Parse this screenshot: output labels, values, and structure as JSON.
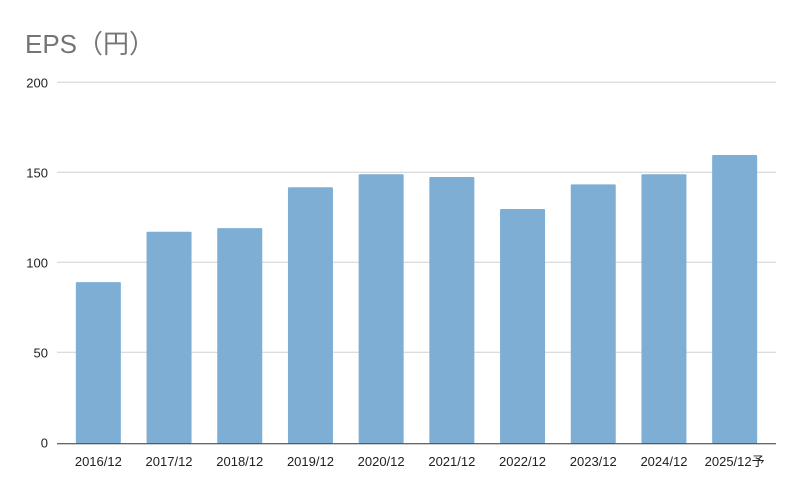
{
  "chart_data": {
    "type": "bar",
    "title": "EPS（円）",
    "xlabel": "",
    "ylabel": "",
    "categories": [
      "2016/12",
      "2017/12",
      "2018/12",
      "2019/12",
      "2020/12",
      "2021/12",
      "2022/12",
      "2023/12",
      "2024/12",
      "2025/12予"
    ],
    "values": [
      89,
      117,
      119,
      141.7,
      148.9,
      147.4,
      129.6,
      143.3,
      148.9,
      159.6
    ],
    "ylim": [
      0,
      200
    ],
    "yticks": [
      0,
      50,
      100,
      150,
      200
    ],
    "grid": true,
    "legend": "none",
    "bar_color": "#7eaed3"
  }
}
